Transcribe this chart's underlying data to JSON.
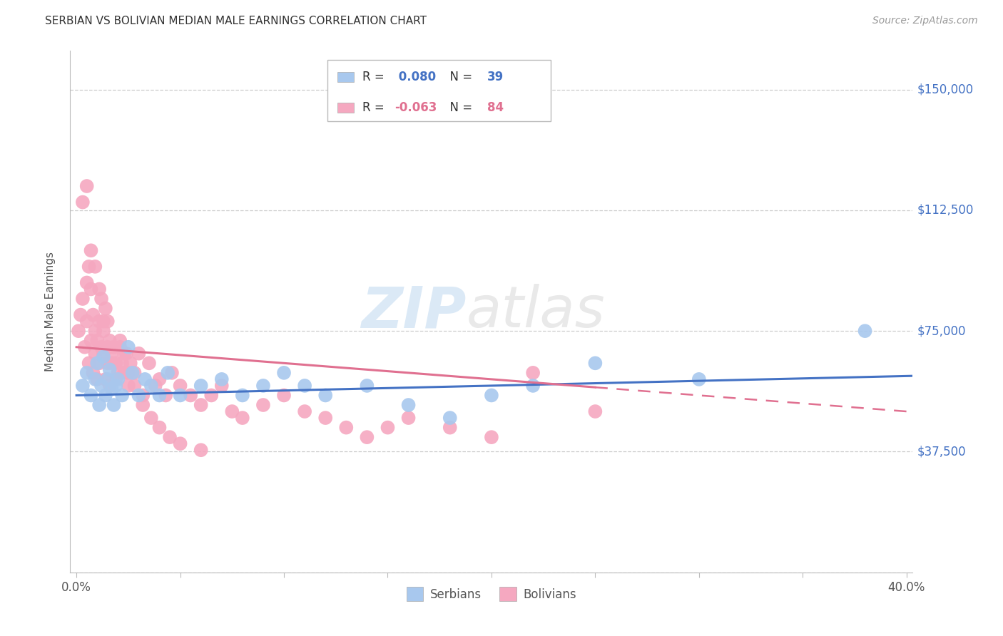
{
  "title": "SERBIAN VS BOLIVIAN MEDIAN MALE EARNINGS CORRELATION CHART",
  "source": "Source: ZipAtlas.com",
  "ylabel": "Median Male Earnings",
  "xlim": [
    -0.003,
    0.403
  ],
  "ylim": [
    0,
    162000
  ],
  "yticks": [
    0,
    37500,
    75000,
    112500,
    150000
  ],
  "ytick_labels": [
    "",
    "$37,500",
    "$75,000",
    "$112,500",
    "$150,000"
  ],
  "xticks": [
    0.0,
    0.05,
    0.1,
    0.15,
    0.2,
    0.25,
    0.3,
    0.35,
    0.4
  ],
  "serbian_R": 0.08,
  "serbian_N": 39,
  "bolivian_R": -0.063,
  "bolivian_N": 84,
  "serbian_color": "#A8C8EE",
  "bolivian_color": "#F5A8C0",
  "serbian_line_color": "#4472C4",
  "bolivian_line_color": "#E07090",
  "background_color": "#FFFFFF",
  "grid_color": "#CCCCCC",
  "watermark_zip": "ZIP",
  "watermark_atlas": "atlas",
  "serbian_x": [
    0.003,
    0.005,
    0.007,
    0.009,
    0.01,
    0.011,
    0.012,
    0.013,
    0.014,
    0.015,
    0.016,
    0.017,
    0.018,
    0.019,
    0.02,
    0.022,
    0.025,
    0.027,
    0.03,
    0.033,
    0.036,
    0.04,
    0.044,
    0.05,
    0.06,
    0.07,
    0.08,
    0.09,
    0.1,
    0.11,
    0.12,
    0.14,
    0.16,
    0.18,
    0.2,
    0.22,
    0.25,
    0.3,
    0.38
  ],
  "serbian_y": [
    58000,
    62000,
    55000,
    60000,
    65000,
    52000,
    58000,
    67000,
    55000,
    60000,
    63000,
    57000,
    52000,
    58000,
    60000,
    55000,
    70000,
    62000,
    55000,
    60000,
    58000,
    55000,
    62000,
    55000,
    58000,
    60000,
    55000,
    58000,
    62000,
    58000,
    55000,
    58000,
    52000,
    48000,
    55000,
    58000,
    65000,
    60000,
    75000
  ],
  "bolivian_x": [
    0.001,
    0.002,
    0.003,
    0.004,
    0.005,
    0.005,
    0.006,
    0.006,
    0.007,
    0.007,
    0.008,
    0.008,
    0.009,
    0.009,
    0.01,
    0.01,
    0.011,
    0.011,
    0.012,
    0.012,
    0.013,
    0.013,
    0.014,
    0.014,
    0.015,
    0.015,
    0.016,
    0.016,
    0.017,
    0.018,
    0.019,
    0.02,
    0.021,
    0.022,
    0.023,
    0.024,
    0.025,
    0.026,
    0.028,
    0.03,
    0.032,
    0.035,
    0.038,
    0.04,
    0.043,
    0.046,
    0.05,
    0.055,
    0.06,
    0.065,
    0.07,
    0.075,
    0.08,
    0.09,
    0.1,
    0.11,
    0.12,
    0.13,
    0.14,
    0.15,
    0.16,
    0.18,
    0.2,
    0.22,
    0.25,
    0.003,
    0.005,
    0.007,
    0.009,
    0.011,
    0.013,
    0.015,
    0.017,
    0.019,
    0.021,
    0.023,
    0.025,
    0.028,
    0.032,
    0.036,
    0.04,
    0.045,
    0.05,
    0.06
  ],
  "bolivian_y": [
    75000,
    80000,
    85000,
    70000,
    90000,
    78000,
    95000,
    65000,
    88000,
    72000,
    80000,
    62000,
    75000,
    68000,
    72000,
    60000,
    78000,
    65000,
    85000,
    70000,
    68000,
    75000,
    82000,
    60000,
    78000,
    65000,
    72000,
    58000,
    68000,
    70000,
    65000,
    62000,
    70000,
    65000,
    62000,
    68000,
    58000,
    65000,
    62000,
    68000,
    55000,
    65000,
    58000,
    60000,
    55000,
    62000,
    58000,
    55000,
    52000,
    55000,
    58000,
    50000,
    48000,
    52000,
    55000,
    50000,
    48000,
    45000,
    42000,
    45000,
    48000,
    45000,
    42000,
    62000,
    50000,
    115000,
    120000,
    100000,
    95000,
    88000,
    78000,
    70000,
    65000,
    60000,
    72000,
    68000,
    62000,
    58000,
    52000,
    48000,
    45000,
    42000,
    40000,
    38000
  ]
}
